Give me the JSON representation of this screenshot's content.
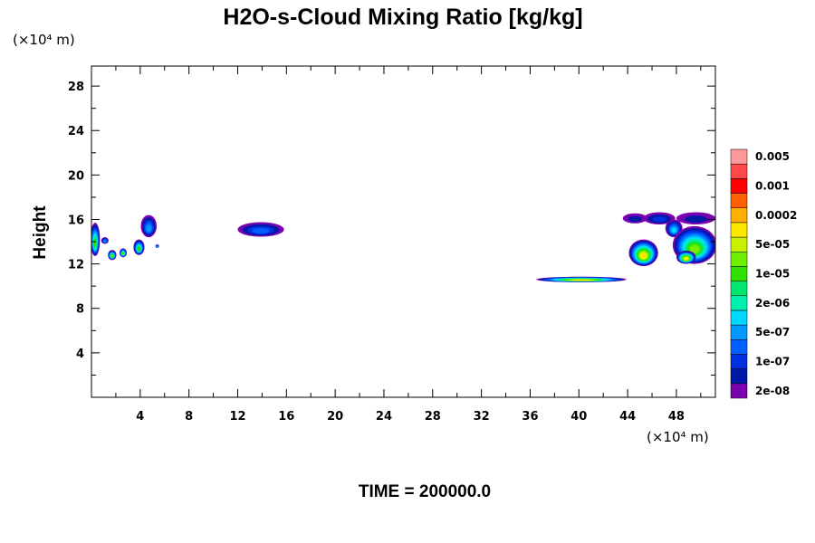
{
  "chart_data": {
    "type": "heatmap",
    "title": "H2O-s-Cloud Mixing Ratio [kg/kg]",
    "xlabel": "",
    "ylabel": "Height",
    "x_unit": "(×10⁴ m)",
    "y_unit": "(×10⁴ m)",
    "xlim": [
      0,
      51.2
    ],
    "ylim": [
      0,
      29.8
    ],
    "x_ticks": [
      4,
      8,
      12,
      16,
      20,
      24,
      28,
      32,
      36,
      40,
      44,
      48
    ],
    "x_tick_labels": [
      "4",
      "8",
      "12",
      "16",
      "20",
      "24",
      "28",
      "32",
      "36",
      "40",
      "44",
      "48"
    ],
    "y_ticks": [
      4,
      8,
      12,
      16,
      20,
      24,
      28
    ],
    "y_tick_labels": [
      "4",
      "8",
      "12",
      "16",
      "20",
      "24",
      "28"
    ],
    "grid": false,
    "footer": "TIME = 200000.0",
    "colorbar": {
      "placement": "right",
      "colors": [
        "#7a00b0",
        "#0018a8",
        "#0030e0",
        "#0060ff",
        "#0098ff",
        "#00d8ff",
        "#00f0b0",
        "#00e870",
        "#30e000",
        "#70f000",
        "#c8f000",
        "#ffe800",
        "#ffb000",
        "#ff6000",
        "#ff0000",
        "#ff4848",
        "#ff9898"
      ],
      "labels": [
        "2e-08",
        "1e-07",
        "5e-07",
        "2e-06",
        "1e-05",
        "5e-05",
        "0.0002",
        "0.001",
        "0.005"
      ]
    },
    "regions": [
      {
        "cx": 0.3,
        "cy": 14.2,
        "rx": 0.4,
        "ry": 1.5,
        "level": 8
      },
      {
        "cx": 1.1,
        "cy": 14.1,
        "rx": 0.3,
        "ry": 0.3,
        "level": 4
      },
      {
        "cx": 1.7,
        "cy": 12.8,
        "rx": 0.35,
        "ry": 0.45,
        "level": 9
      },
      {
        "cx": 2.6,
        "cy": 13.0,
        "rx": 0.3,
        "ry": 0.4,
        "level": 9
      },
      {
        "cx": 3.9,
        "cy": 13.5,
        "rx": 0.45,
        "ry": 0.7,
        "level": 8
      },
      {
        "cx": 4.7,
        "cy": 15.4,
        "rx": 0.65,
        "ry": 1.0,
        "level": 4
      },
      {
        "cx": 5.4,
        "cy": 13.6,
        "rx": 0.15,
        "ry": 0.15,
        "level": 5
      },
      {
        "cx": 13.9,
        "cy": 15.1,
        "rx": 1.9,
        "ry": 0.65,
        "level": 3
      },
      {
        "cx": 40.2,
        "cy": 10.6,
        "rx": 3.7,
        "ry": 0.25,
        "level": 11
      },
      {
        "cx": 44.6,
        "cy": 16.1,
        "rx": 1.0,
        "ry": 0.45,
        "level": 1
      },
      {
        "cx": 46.6,
        "cy": 16.1,
        "rx": 1.3,
        "ry": 0.55,
        "level": 2
      },
      {
        "cx": 49.6,
        "cy": 16.1,
        "rx": 1.6,
        "ry": 0.55,
        "level": 1
      },
      {
        "cx": 47.8,
        "cy": 15.2,
        "rx": 0.7,
        "ry": 0.8,
        "level": 5
      },
      {
        "cx": 45.3,
        "cy": 13.0,
        "rx": 1.2,
        "ry": 1.2,
        "level": 11
      },
      {
        "cx": 49.5,
        "cy": 13.7,
        "rx": 1.8,
        "ry": 1.7,
        "level": 9
      },
      {
        "cx": 48.8,
        "cy": 12.6,
        "rx": 0.8,
        "ry": 0.6,
        "level": 11
      }
    ]
  }
}
